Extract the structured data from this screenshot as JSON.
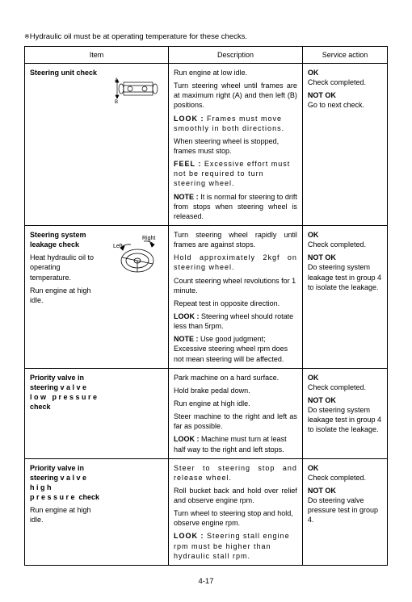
{
  "headerNote": "Hydraulic oil must be at operating temperature for these checks.",
  "headers": {
    "item": "Item",
    "description": "Description",
    "action": "Service action"
  },
  "rows": [
    {
      "item": {
        "title": "Steering unit check"
      },
      "diagram": {
        "type": "frame",
        "labelA": "A",
        "labelB": "B"
      },
      "desc": [
        {
          "text": "Run engine at low idle."
        },
        {
          "text": "Turn steering wheel until frames are at maximum right (A) and then left (B) positions.",
          "just": true
        },
        {
          "lead": "LOOK : ",
          "text": "Frames must move smoothly in both directions.",
          "stretch": true
        },
        {
          "text": "When steering wheel is stopped, frames must stop."
        },
        {
          "lead": "FEEL : ",
          "text": "Excessive effort must not be required to turn steering wheel.",
          "stretch": true
        },
        {
          "lead": "NOTE : ",
          "text": "It is normal for steering to drift from stops when steering wheel is released.",
          "just": true
        }
      ],
      "action": {
        "okLabel": "OK",
        "okText": "Check completed.",
        "notOkLabel": "NOT OK",
        "notOkText": "Go to next check."
      }
    },
    {
      "item": {
        "title": "Steering system leakage check",
        "sub1": "Heat hydraulic oil to operating temperature.",
        "sub2": "Run engine at high idle."
      },
      "diagram": {
        "type": "wheel",
        "right": "Right",
        "left": "Left"
      },
      "desc": [
        {
          "text": "Turn steering wheel rapidly until frames are against stops.",
          "just": true
        },
        {
          "text": "Hold approximately 2kgf on steering wheel.",
          "stretch": true,
          "just": true
        },
        {
          "text": "Count steering wheel revolutions for 1 minute."
        },
        {
          "text": "Repeat test in opposite direction."
        },
        {
          "lead": "LOOK : ",
          "text": "Steering wheel should rotate less than 5rpm."
        },
        {
          "lead": "NOTE : ",
          "text": "Use good judgment; Excessive steering wheel rpm does not mean steering will be affected."
        }
      ],
      "action": {
        "okLabel": "OK",
        "okText": "Check completed.",
        "notOkLabel": "NOT OK",
        "notOkText": "Do steering system leakage test in group 4 to isolate the leakage.",
        "notOkStretch": true
      }
    },
    {
      "item": {
        "title": "Priority valve in steering valve low pressure check",
        "titleStretch": true
      },
      "desc": [
        {
          "text": "Park machine on a hard surface."
        },
        {
          "text": "Hold brake pedal down."
        },
        {
          "text": "Run engine at high idle."
        },
        {
          "text": "Steer machine to the right and left as far as possible.",
          "just": true
        },
        {
          "lead": "LOOK : ",
          "text": "Machine must turn at least half way to the right and left stops."
        }
      ],
      "action": {
        "okLabel": "OK",
        "okText": "Check completed.",
        "notOkLabel": "NOT OK",
        "notOkText": "Do steering system leakage test  in group 4 to isolate the leakage.",
        "notOkStretch": true
      }
    },
    {
      "item": {
        "title": "Priority valve in steering valve high pressure check",
        "titleStretch": true,
        "sub1": "Run engine at high idle."
      },
      "desc": [
        {
          "text": "Steer to steering stop and release wheel.",
          "stretch": true,
          "just": true
        },
        {
          "text": "Roll bucket back and hold over relief and observe engine rpm.",
          "just": true
        },
        {
          "text": "Turn wheel to steering stop and hold, observe engine rpm."
        },
        {
          "lead": "LOOK : ",
          "text": "Steering stall engine rpm must be higher than hydraulic stall rpm.",
          "stretch": true
        }
      ],
      "action": {
        "okLabel": "OK",
        "okText": "Check completed.",
        "notOkLabel": "NOT OK",
        "notOkText": "Do steering valve pressure test in group 4."
      }
    }
  ],
  "pageNum": "4-17"
}
